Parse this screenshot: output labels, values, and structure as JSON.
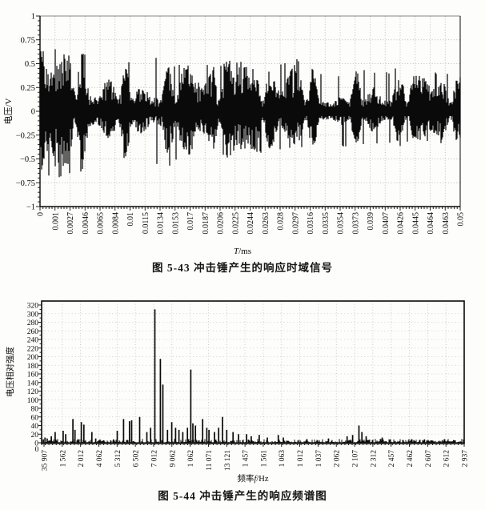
{
  "page": {
    "background": "#fdfdfc",
    "ink": "#0a0a0a",
    "grid_color": "#aaaaaa"
  },
  "chart_data": [
    {
      "figure_label": "图 5-43",
      "type": "line",
      "title": "图 5-43  冲击锤产生的响应时域信号",
      "xlabel": "T/ms",
      "ylabel": "电压/V",
      "ylim": [
        -1,
        1
      ],
      "xlim_labels": [
        "0",
        "0.05"
      ],
      "grid": true,
      "y_tick_labels": [
        "1",
        "0.75",
        "0.5",
        "0.25",
        "0",
        "−0.25",
        "−0.5",
        "−0.75",
        "−1"
      ],
      "x_tick_labels": [
        "0",
        "0.001",
        "0.0027",
        "0.0046",
        "0.0065",
        "0.0084",
        "0.01",
        "0.0115",
        "0.0134",
        "0.0153",
        "0.017",
        "0.0187",
        "0.0206",
        "0.0225",
        "0.0244",
        "0.0263",
        "0.028",
        "0.0297",
        "0.0316",
        "0.0335",
        "0.0354",
        "0.0373",
        "0.039",
        "0.0407",
        "0.0426",
        "0.0445",
        "0.0464",
        "0.0463",
        "0.05"
      ],
      "description": "broadband impact-hammer response, dense oscillation decaying from about ±0.85 V to ±0.3 V",
      "envelope_upper": [
        [
          0,
          0.85
        ],
        [
          0.02,
          0.78
        ],
        [
          0.05,
          0.62
        ],
        [
          0.08,
          0.83
        ],
        [
          0.11,
          0.58
        ],
        [
          0.16,
          0.66
        ],
        [
          0.21,
          0.52
        ],
        [
          0.26,
          0.62
        ],
        [
          0.31,
          0.5
        ],
        [
          0.36,
          0.56
        ],
        [
          0.41,
          0.47
        ],
        [
          0.46,
          0.57
        ],
        [
          0.51,
          0.44
        ],
        [
          0.56,
          0.5
        ],
        [
          0.61,
          0.55
        ],
        [
          0.66,
          0.42
        ],
        [
          0.71,
          0.38
        ],
        [
          0.76,
          0.45
        ],
        [
          0.81,
          0.4
        ],
        [
          0.86,
          0.48
        ],
        [
          0.91,
          0.37
        ],
        [
          0.95,
          0.42
        ],
        [
          1,
          0.38
        ]
      ],
      "envelope_lower": [
        [
          0,
          0.7
        ],
        [
          0.05,
          0.75
        ],
        [
          0.1,
          0.64
        ],
        [
          0.15,
          0.55
        ],
        [
          0.2,
          0.5
        ],
        [
          0.25,
          0.56
        ],
        [
          0.3,
          0.62
        ],
        [
          0.35,
          0.5
        ],
        [
          0.4,
          0.45
        ],
        [
          0.45,
          0.5
        ],
        [
          0.5,
          0.42
        ],
        [
          0.55,
          0.46
        ],
        [
          0.6,
          0.4
        ],
        [
          0.65,
          0.43
        ],
        [
          0.7,
          0.35
        ],
        [
          0.75,
          0.4
        ],
        [
          0.8,
          0.34
        ],
        [
          0.85,
          0.38
        ],
        [
          0.9,
          0.32
        ],
        [
          0.95,
          0.36
        ],
        [
          1,
          0.32
        ]
      ]
    },
    {
      "figure_label": "图 5-44",
      "type": "bar",
      "title": "图 5-44  冲击锤产生的响应频谱图",
      "xlabel": "频率f/Hz",
      "ylabel": "电压相对强度",
      "ylim": [
        0,
        320
      ],
      "grid": true,
      "y_tick_labels": [
        "320",
        "300",
        "280",
        "260",
        "240",
        "220",
        "200",
        "180",
        "160",
        "140",
        "120",
        "100",
        "80",
        "60",
        "40",
        "20",
        "0"
      ],
      "x_origin_label": "0",
      "x_tick_labels": [
        "35 907",
        "1 562",
        "2 012",
        "4 062",
        "5 312",
        "6 502",
        "7 012",
        "9 062",
        "1 062",
        "11 071",
        "13 121",
        "1 457",
        "1 561",
        "1 063",
        "1 012",
        "1 037",
        "2 062",
        "2 107",
        "2 312",
        "2 457",
        "2 462",
        "2 607",
        "2 612",
        "2 937"
      ],
      "noise_floor_max": 8,
      "peaks": [
        [
          0.004,
          8
        ],
        [
          0.008,
          12
        ],
        [
          0.013,
          10
        ],
        [
          0.023,
          15
        ],
        [
          0.032,
          25
        ],
        [
          0.051,
          28
        ],
        [
          0.057,
          20
        ],
        [
          0.074,
          55
        ],
        [
          0.079,
          30
        ],
        [
          0.094,
          48
        ],
        [
          0.1,
          42
        ],
        [
          0.119,
          25
        ],
        [
          0.128,
          10
        ],
        [
          0.17,
          8
        ],
        [
          0.179,
          28
        ],
        [
          0.194,
          55
        ],
        [
          0.208,
          50
        ],
        [
          0.213,
          52
        ],
        [
          0.232,
          60
        ],
        [
          0.249,
          25
        ],
        [
          0.258,
          35
        ],
        [
          0.268,
          310
        ],
        [
          0.281,
          195
        ],
        [
          0.287,
          135
        ],
        [
          0.298,
          30
        ],
        [
          0.308,
          48
        ],
        [
          0.317,
          35
        ],
        [
          0.325,
          30
        ],
        [
          0.334,
          25
        ],
        [
          0.345,
          35
        ],
        [
          0.353,
          170
        ],
        [
          0.358,
          45
        ],
        [
          0.364,
          40
        ],
        [
          0.381,
          55
        ],
        [
          0.391,
          35
        ],
        [
          0.396,
          30
        ],
        [
          0.409,
          25
        ],
        [
          0.419,
          35
        ],
        [
          0.428,
          60
        ],
        [
          0.438,
          30
        ],
        [
          0.453,
          25
        ],
        [
          0.466,
          20
        ],
        [
          0.485,
          20
        ],
        [
          0.496,
          15
        ],
        [
          0.515,
          18
        ],
        [
          0.534,
          12
        ],
        [
          0.56,
          18
        ],
        [
          0.572,
          12
        ],
        [
          0.628,
          8
        ],
        [
          0.679,
          10
        ],
        [
          0.723,
          15
        ],
        [
          0.736,
          18
        ],
        [
          0.751,
          40
        ],
        [
          0.758,
          25
        ],
        [
          0.768,
          15
        ],
        [
          0.806,
          12
        ],
        [
          0.825,
          8
        ],
        [
          0.881,
          6
        ],
        [
          0.906,
          8
        ],
        [
          0.949,
          5
        ],
        [
          0.975,
          6
        ]
      ]
    }
  ]
}
